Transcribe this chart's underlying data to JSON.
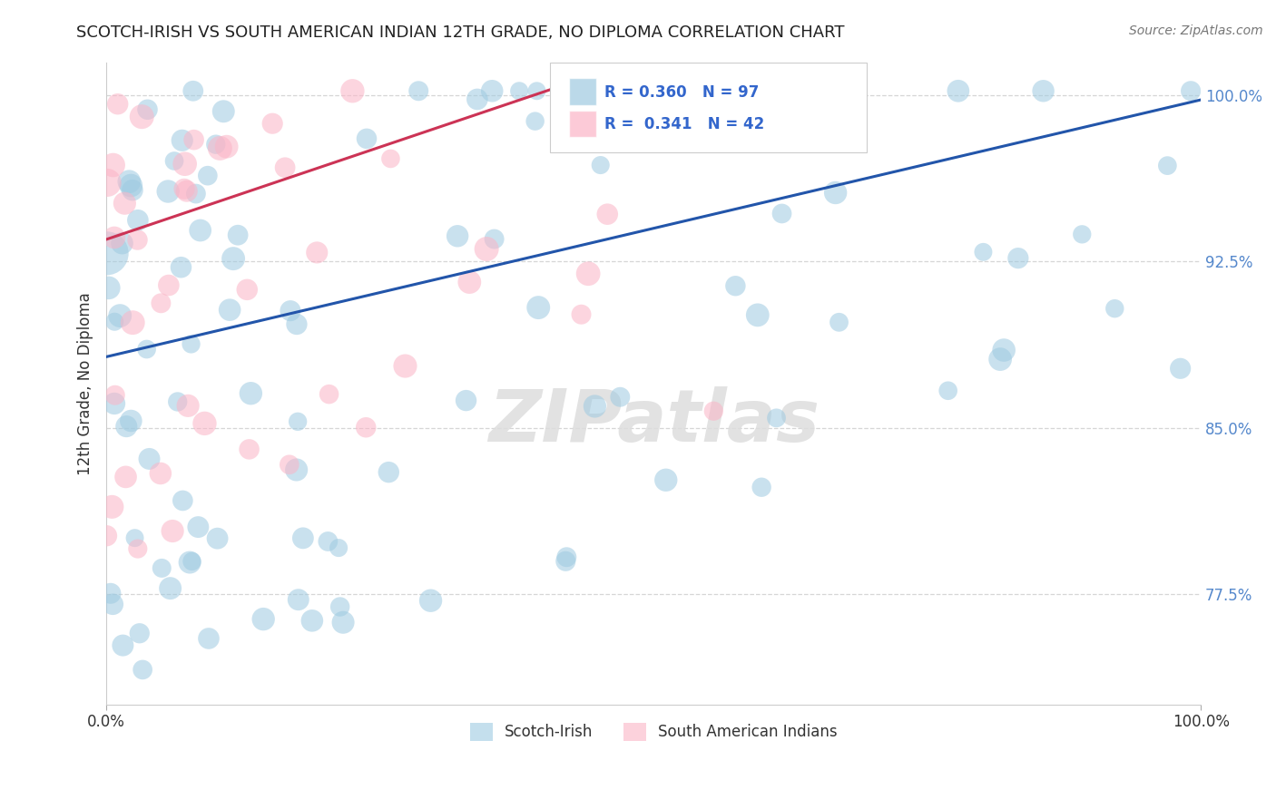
{
  "title": "SCOTCH-IRISH VS SOUTH AMERICAN INDIAN 12TH GRADE, NO DIPLOMA CORRELATION CHART",
  "source": "Source: ZipAtlas.com",
  "ylabel": "12th Grade, No Diploma",
  "watermark": "ZIPatlas",
  "legend_blue_label": "Scotch-Irish",
  "legend_pink_label": "South American Indians",
  "R_blue": 0.36,
  "N_blue": 97,
  "R_pink": 0.341,
  "N_pink": 42,
  "blue_color": "#9ecae1",
  "pink_color": "#fbb4c6",
  "trend_blue": "#2255aa",
  "trend_pink": "#cc3355",
  "xlim": [
    0.0,
    1.0
  ],
  "ylim": [
    0.725,
    1.015
  ],
  "yticks": [
    0.775,
    0.85,
    0.925,
    1.0
  ],
  "ytick_labels": [
    "77.5%",
    "85.0%",
    "92.5%",
    "100.0%"
  ],
  "xtick_labels": [
    "0.0%",
    "100.0%"
  ],
  "blue_trend_x": [
    0.0,
    1.0
  ],
  "blue_trend_y": [
    0.882,
    0.998
  ],
  "pink_trend_x": [
    0.0,
    0.42
  ],
  "pink_trend_y": [
    0.935,
    1.005
  ]
}
